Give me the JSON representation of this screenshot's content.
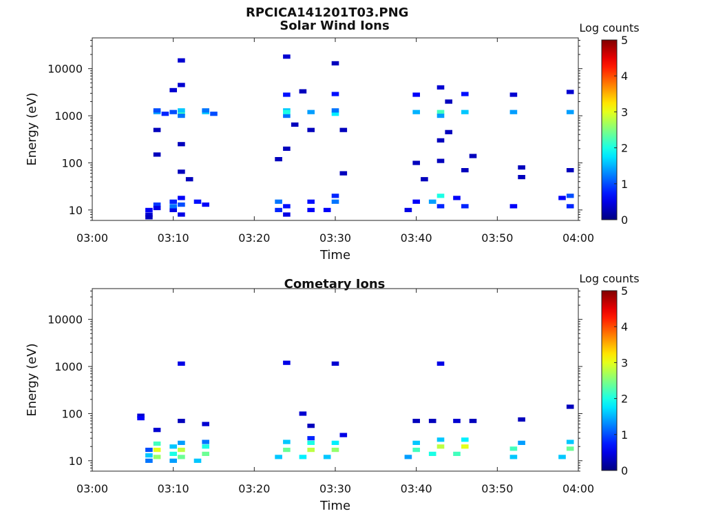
{
  "figure_title": "RPCICA141201T03.PNG",
  "chart_data": [
    {
      "type": "heatmap",
      "title": "Solar Wind Ions",
      "xlabel": "Time",
      "ylabel": "Energy (eV)",
      "xlim": [
        "03:00",
        "04:00"
      ],
      "ylim": [
        6,
        45000
      ],
      "yscale": "log",
      "xticks": [
        "03:00",
        "03:10",
        "03:20",
        "03:30",
        "03:40",
        "03:50",
        "04:00"
      ],
      "yticks": [
        {
          "value": 10,
          "label": "10"
        },
        {
          "value": 100,
          "label": "100"
        },
        {
          "value": 1000,
          "label": "1000"
        },
        {
          "value": 10000,
          "label": "10000"
        }
      ],
      "colorbar": {
        "label": "Log counts",
        "min": 0,
        "max": 5,
        "ticks": [
          "0",
          "1",
          "2",
          "3",
          "4",
          "5"
        ],
        "colormap": "jet"
      },
      "grid": false,
      "points": [
        {
          "t": "03:07",
          "e": 8,
          "v": 0.4
        },
        {
          "t": "03:07",
          "e": 7,
          "v": 0.3
        },
        {
          "t": "03:07",
          "e": 10,
          "v": 0.6
        },
        {
          "t": "03:08",
          "e": 13,
          "v": 0.9
        },
        {
          "t": "03:08",
          "e": 11,
          "v": 0.5
        },
        {
          "t": "03:08",
          "e": 1200,
          "v": 1.4
        },
        {
          "t": "03:08",
          "e": 1300,
          "v": 1.0
        },
        {
          "t": "03:09",
          "e": 1100,
          "v": 0.8
        },
        {
          "t": "03:08",
          "e": 500,
          "v": 0.3
        },
        {
          "t": "03:08",
          "e": 150,
          "v": 0.3
        },
        {
          "t": "03:10",
          "e": 10,
          "v": 0.5
        },
        {
          "t": "03:10",
          "e": 12,
          "v": 1.2
        },
        {
          "t": "03:10",
          "e": 15,
          "v": 0.8
        },
        {
          "t": "03:11",
          "e": 8,
          "v": 0.5
        },
        {
          "t": "03:11",
          "e": 13,
          "v": 1.0
        },
        {
          "t": "03:11",
          "e": 18,
          "v": 0.6
        },
        {
          "t": "03:10",
          "e": 1200,
          "v": 1.0
        },
        {
          "t": "03:11",
          "e": 1100,
          "v": 2.2
        },
        {
          "t": "03:11",
          "e": 1300,
          "v": 1.6
        },
        {
          "t": "03:11",
          "e": 1000,
          "v": 1.2
        },
        {
          "t": "03:10",
          "e": 3500,
          "v": 0.4
        },
        {
          "t": "03:11",
          "e": 4500,
          "v": 0.4
        },
        {
          "t": "03:11",
          "e": 15000,
          "v": 0.4
        },
        {
          "t": "03:11",
          "e": 250,
          "v": 0.3
        },
        {
          "t": "03:11",
          "e": 65,
          "v": 0.3
        },
        {
          "t": "03:12",
          "e": 45,
          "v": 0.3
        },
        {
          "t": "03:13",
          "e": 15,
          "v": 0.7
        },
        {
          "t": "03:14",
          "e": 13,
          "v": 0.6
        },
        {
          "t": "03:14",
          "e": 1200,
          "v": 1.6
        },
        {
          "t": "03:14",
          "e": 1300,
          "v": 1.2
        },
        {
          "t": "03:15",
          "e": 1100,
          "v": 1.0
        },
        {
          "t": "03:23",
          "e": 10,
          "v": 0.8
        },
        {
          "t": "03:23",
          "e": 15,
          "v": 1.2
        },
        {
          "t": "03:24",
          "e": 8,
          "v": 0.5
        },
        {
          "t": "03:24",
          "e": 12,
          "v": 0.7
        },
        {
          "t": "03:24",
          "e": 1000,
          "v": 1.2
        },
        {
          "t": "03:24",
          "e": 1300,
          "v": 1.6
        },
        {
          "t": "03:24",
          "e": 1200,
          "v": 2.0
        },
        {
          "t": "03:24",
          "e": 2800,
          "v": 0.7
        },
        {
          "t": "03:24",
          "e": 18000,
          "v": 0.4
        },
        {
          "t": "03:24",
          "e": 200,
          "v": 0.3
        },
        {
          "t": "03:23",
          "e": 120,
          "v": 0.3
        },
        {
          "t": "03:25",
          "e": 650,
          "v": 0.3
        },
        {
          "t": "03:26",
          "e": 3300,
          "v": 0.3
        },
        {
          "t": "03:27",
          "e": 10,
          "v": 0.6
        },
        {
          "t": "03:27",
          "e": 15,
          "v": 0.7
        },
        {
          "t": "03:27",
          "e": 1200,
          "v": 1.4
        },
        {
          "t": "03:27",
          "e": 500,
          "v": 0.3
        },
        {
          "t": "03:29",
          "e": 10,
          "v": 0.6
        },
        {
          "t": "03:30",
          "e": 15,
          "v": 1.2
        },
        {
          "t": "03:30",
          "e": 20,
          "v": 0.8
        },
        {
          "t": "03:30",
          "e": 1100,
          "v": 1.8
        },
        {
          "t": "03:30",
          "e": 1300,
          "v": 1.2
        },
        {
          "t": "03:30",
          "e": 2900,
          "v": 0.7
        },
        {
          "t": "03:30",
          "e": 13000,
          "v": 0.3
        },
        {
          "t": "03:31",
          "e": 500,
          "v": 0.3
        },
        {
          "t": "03:31",
          "e": 60,
          "v": 0.3
        },
        {
          "t": "03:39",
          "e": 10,
          "v": 0.5
        },
        {
          "t": "03:40",
          "e": 15,
          "v": 0.6
        },
        {
          "t": "03:40",
          "e": 1200,
          "v": 1.5
        },
        {
          "t": "03:40",
          "e": 2800,
          "v": 0.6
        },
        {
          "t": "03:40",
          "e": 100,
          "v": 0.3
        },
        {
          "t": "03:41",
          "e": 45,
          "v": 0.3
        },
        {
          "t": "03:42",
          "e": 15,
          "v": 1.4
        },
        {
          "t": "03:43",
          "e": 20,
          "v": 2.0
        },
        {
          "t": "03:43",
          "e": 12,
          "v": 0.8
        },
        {
          "t": "03:43",
          "e": 1200,
          "v": 2.2
        },
        {
          "t": "03:43",
          "e": 1000,
          "v": 1.4
        },
        {
          "t": "03:43",
          "e": 4000,
          "v": 0.4
        },
        {
          "t": "03:43",
          "e": 300,
          "v": 0.3
        },
        {
          "t": "03:43",
          "e": 110,
          "v": 0.3
        },
        {
          "t": "03:44",
          "e": 2000,
          "v": 0.3
        },
        {
          "t": "03:44",
          "e": 450,
          "v": 0.3
        },
        {
          "t": "03:45",
          "e": 18,
          "v": 0.6
        },
        {
          "t": "03:46",
          "e": 12,
          "v": 0.8
        },
        {
          "t": "03:46",
          "e": 1200,
          "v": 1.6
        },
        {
          "t": "03:46",
          "e": 2900,
          "v": 0.7
        },
        {
          "t": "03:47",
          "e": 140,
          "v": 0.3
        },
        {
          "t": "03:46",
          "e": 70,
          "v": 0.3
        },
        {
          "t": "03:52",
          "e": 12,
          "v": 0.6
        },
        {
          "t": "03:52",
          "e": 1200,
          "v": 1.4
        },
        {
          "t": "03:52",
          "e": 2800,
          "v": 0.4
        },
        {
          "t": "03:53",
          "e": 80,
          "v": 0.3
        },
        {
          "t": "03:53",
          "e": 50,
          "v": 0.3
        },
        {
          "t": "03:58",
          "e": 18,
          "v": 0.6
        },
        {
          "t": "03:59",
          "e": 12,
          "v": 0.8
        },
        {
          "t": "03:59",
          "e": 20,
          "v": 1.0
        },
        {
          "t": "03:59",
          "e": 1200,
          "v": 1.4
        },
        {
          "t": "03:59",
          "e": 3200,
          "v": 0.4
        },
        {
          "t": "03:59",
          "e": 70,
          "v": 0.3
        }
      ]
    },
    {
      "type": "heatmap",
      "title": "Cometary Ions",
      "xlabel": "Time",
      "ylabel": "Energy (eV)",
      "xlim": [
        "03:00",
        "04:00"
      ],
      "ylim": [
        6,
        45000
      ],
      "yscale": "log",
      "xticks": [
        "03:00",
        "03:10",
        "03:20",
        "03:30",
        "03:40",
        "03:50",
        "04:00"
      ],
      "yticks": [
        {
          "value": 10,
          "label": "10"
        },
        {
          "value": 100,
          "label": "100"
        },
        {
          "value": 1000,
          "label": "1000"
        },
        {
          "value": 10000,
          "label": "10000"
        }
      ],
      "colorbar": {
        "label": "Log counts",
        "min": 0,
        "max": 5,
        "ticks": [
          "0",
          "1",
          "2",
          "3",
          "4",
          "5"
        ],
        "colormap": "jet"
      },
      "grid": false,
      "points": [
        {
          "t": "03:06",
          "e": 90,
          "v": 0.4
        },
        {
          "t": "03:06",
          "e": 80,
          "v": 0.6
        },
        {
          "t": "03:07",
          "e": 10,
          "v": 1.2
        },
        {
          "t": "03:07",
          "e": 13,
          "v": 1.6
        },
        {
          "t": "03:07",
          "e": 17,
          "v": 1.0
        },
        {
          "t": "03:08",
          "e": 12,
          "v": 2.6
        },
        {
          "t": "03:08",
          "e": 17,
          "v": 3.0
        },
        {
          "t": "03:08",
          "e": 23,
          "v": 2.2
        },
        {
          "t": "03:08",
          "e": 45,
          "v": 0.4
        },
        {
          "t": "03:10",
          "e": 10,
          "v": 1.4
        },
        {
          "t": "03:10",
          "e": 14,
          "v": 2.0
        },
        {
          "t": "03:10",
          "e": 20,
          "v": 1.6
        },
        {
          "t": "03:11",
          "e": 12,
          "v": 2.4
        },
        {
          "t": "03:11",
          "e": 17,
          "v": 2.8
        },
        {
          "t": "03:11",
          "e": 24,
          "v": 1.4
        },
        {
          "t": "03:11",
          "e": 1150,
          "v": 0.5
        },
        {
          "t": "03:11",
          "e": 70,
          "v": 0.3
        },
        {
          "t": "03:13",
          "e": 10,
          "v": 1.6
        },
        {
          "t": "03:14",
          "e": 14,
          "v": 2.4
        },
        {
          "t": "03:14",
          "e": 20,
          "v": 2.0
        },
        {
          "t": "03:14",
          "e": 25,
          "v": 1.2
        },
        {
          "t": "03:14",
          "e": 60,
          "v": 0.4
        },
        {
          "t": "03:23",
          "e": 12,
          "v": 1.6
        },
        {
          "t": "03:24",
          "e": 17,
          "v": 2.4
        },
        {
          "t": "03:24",
          "e": 25,
          "v": 1.6
        },
        {
          "t": "03:24",
          "e": 1200,
          "v": 0.5
        },
        {
          "t": "03:26",
          "e": 12,
          "v": 1.8
        },
        {
          "t": "03:27",
          "e": 17,
          "v": 2.8
        },
        {
          "t": "03:27",
          "e": 24,
          "v": 2.0
        },
        {
          "t": "03:27",
          "e": 30,
          "v": 0.8
        },
        {
          "t": "03:27",
          "e": 55,
          "v": 0.3
        },
        {
          "t": "03:26",
          "e": 100,
          "v": 0.4
        },
        {
          "t": "03:29",
          "e": 12,
          "v": 1.6
        },
        {
          "t": "03:30",
          "e": 17,
          "v": 2.6
        },
        {
          "t": "03:30",
          "e": 24,
          "v": 1.8
        },
        {
          "t": "03:31",
          "e": 35,
          "v": 0.5
        },
        {
          "t": "03:30",
          "e": 1150,
          "v": 0.4
        },
        {
          "t": "03:39",
          "e": 12,
          "v": 1.4
        },
        {
          "t": "03:40",
          "e": 17,
          "v": 2.2
        },
        {
          "t": "03:40",
          "e": 24,
          "v": 1.6
        },
        {
          "t": "03:40",
          "e": 70,
          "v": 0.3
        },
        {
          "t": "03:42",
          "e": 14,
          "v": 2.0
        },
        {
          "t": "03:43",
          "e": 20,
          "v": 2.8
        },
        {
          "t": "03:43",
          "e": 28,
          "v": 1.6
        },
        {
          "t": "03:43",
          "e": 1150,
          "v": 0.5
        },
        {
          "t": "03:42",
          "e": 70,
          "v": 0.3
        },
        {
          "t": "03:45",
          "e": 14,
          "v": 2.2
        },
        {
          "t": "03:46",
          "e": 20,
          "v": 3.0
        },
        {
          "t": "03:46",
          "e": 28,
          "v": 1.8
        },
        {
          "t": "03:45",
          "e": 70,
          "v": 0.4
        },
        {
          "t": "03:47",
          "e": 70,
          "v": 0.3
        },
        {
          "t": "03:52",
          "e": 12,
          "v": 1.6
        },
        {
          "t": "03:52",
          "e": 18,
          "v": 2.2
        },
        {
          "t": "03:53",
          "e": 24,
          "v": 1.4
        },
        {
          "t": "03:53",
          "e": 75,
          "v": 0.3
        },
        {
          "t": "03:58",
          "e": 12,
          "v": 1.6
        },
        {
          "t": "03:59",
          "e": 18,
          "v": 2.4
        },
        {
          "t": "03:59",
          "e": 25,
          "v": 1.6
        },
        {
          "t": "03:59",
          "e": 140,
          "v": 0.3
        }
      ]
    }
  ]
}
